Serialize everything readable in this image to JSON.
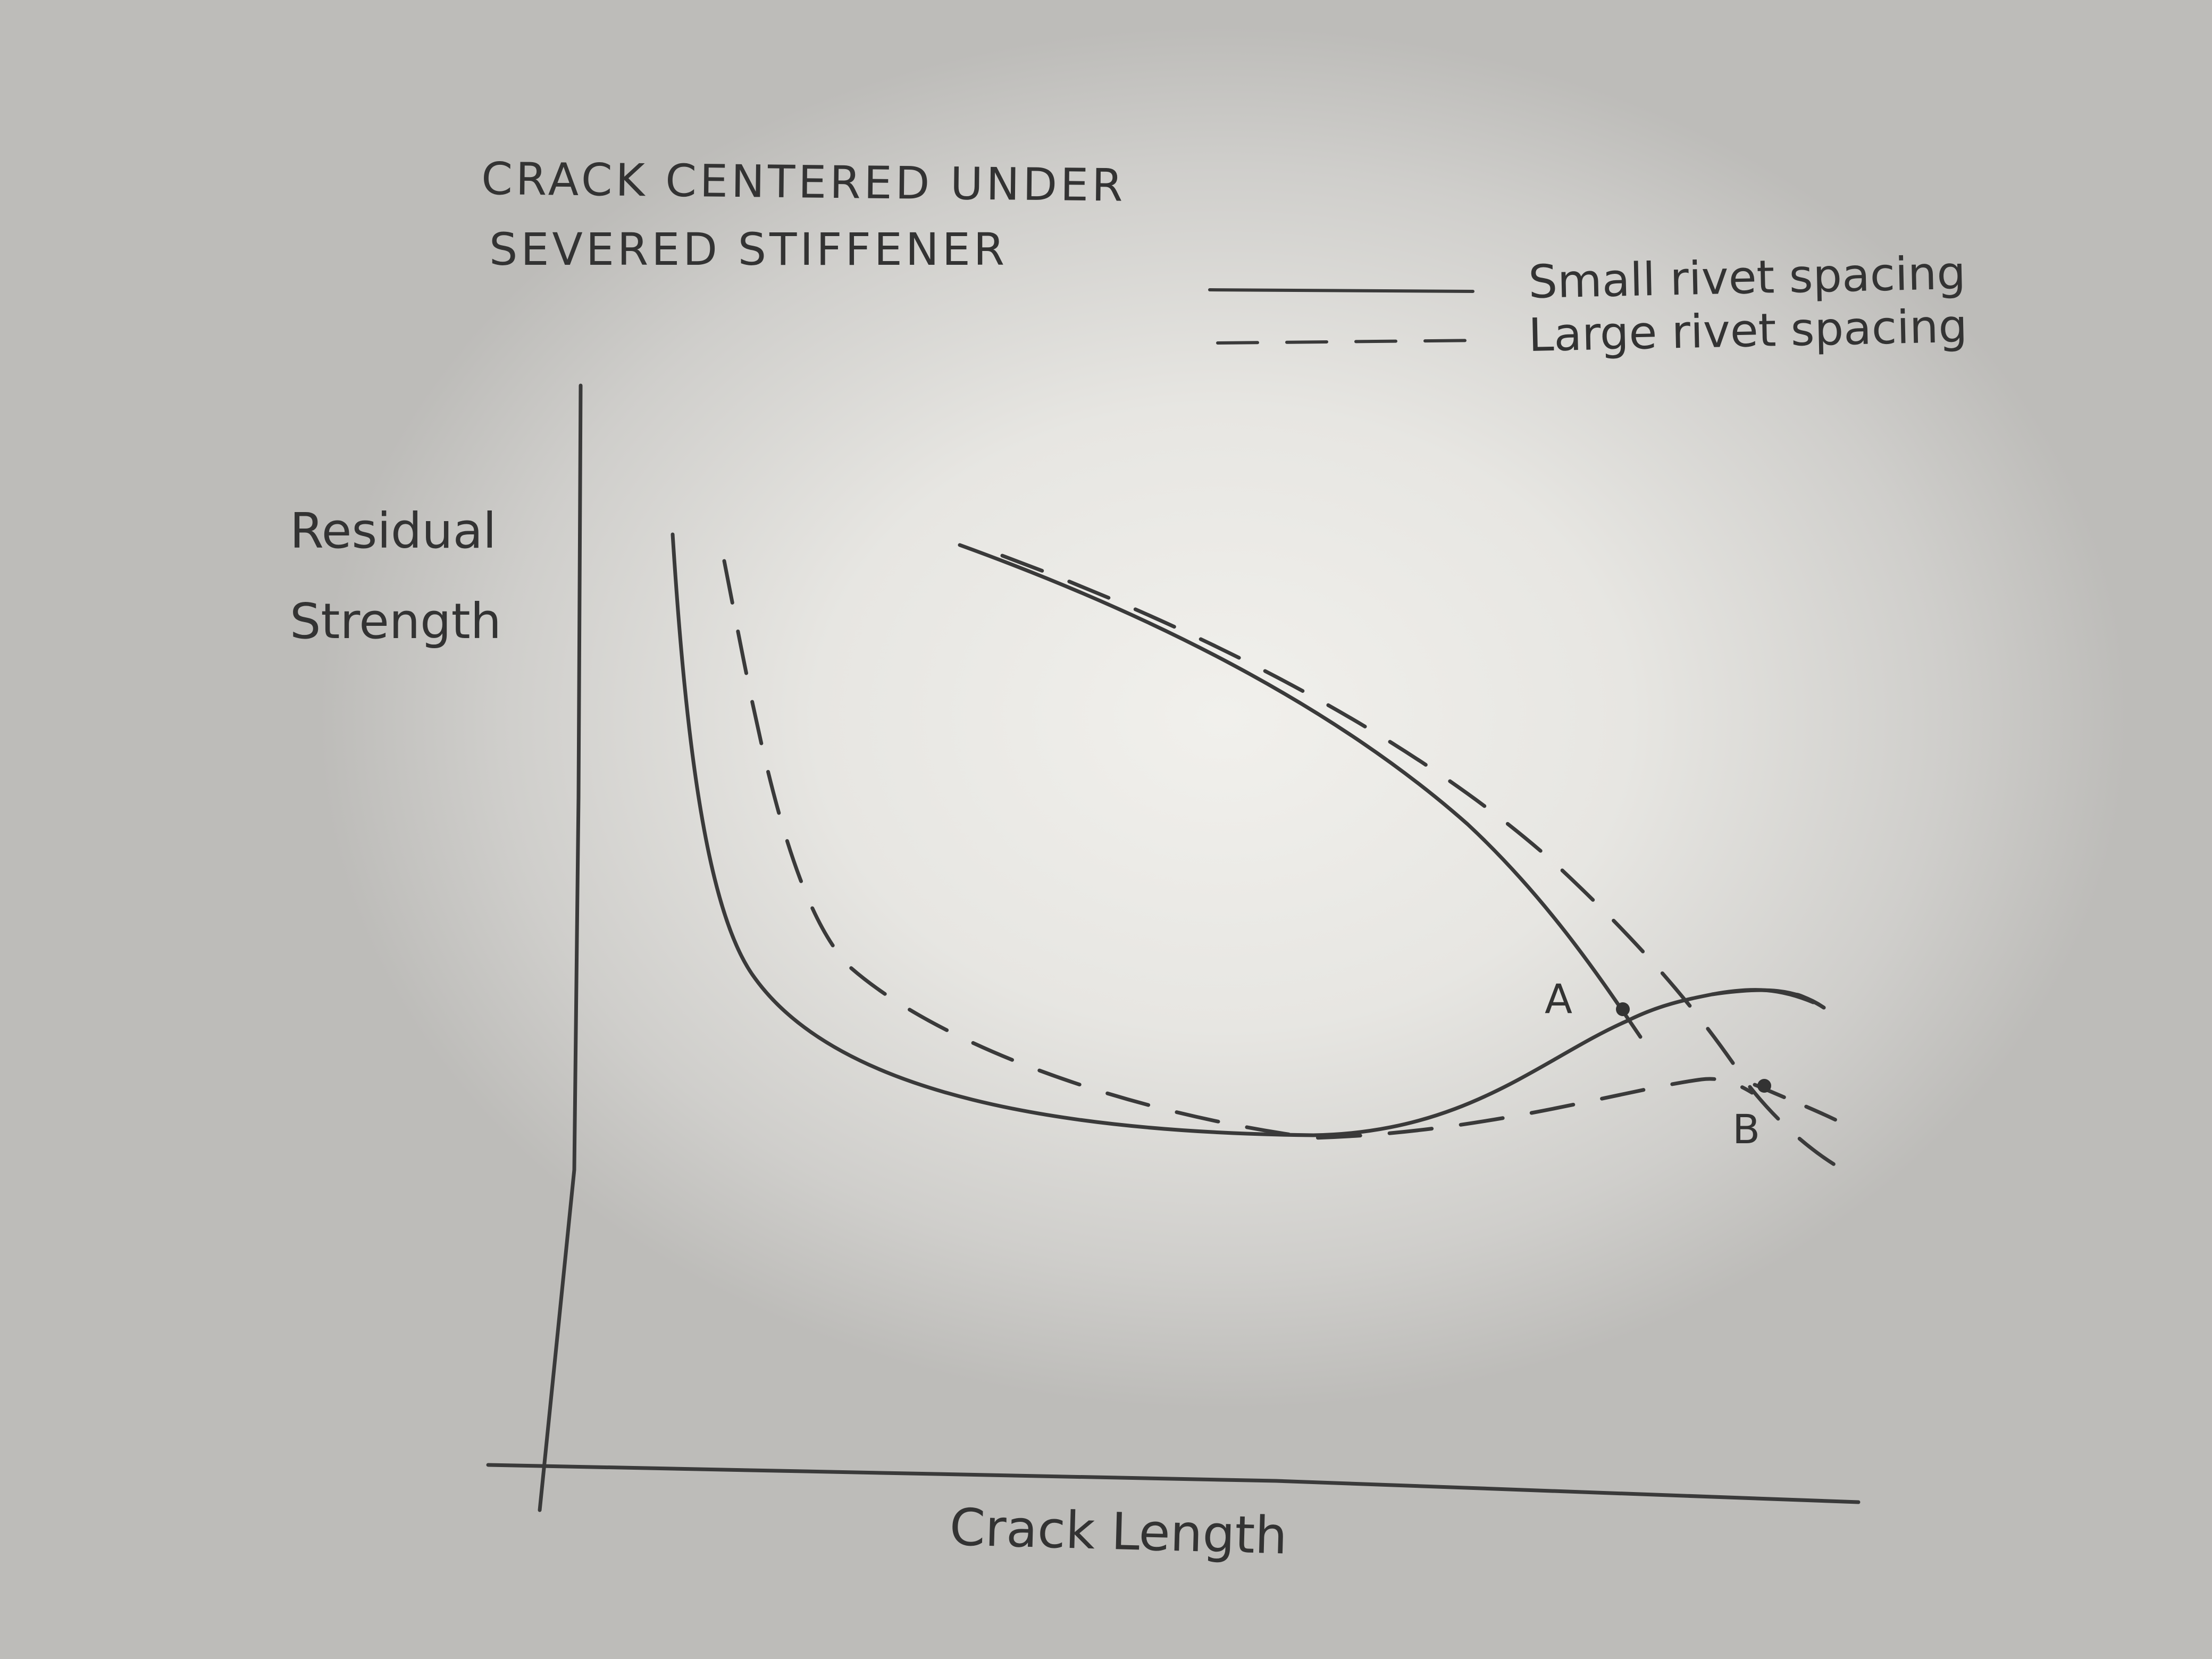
{
  "title": {
    "line1": "CRACK CENTERED UNDER",
    "line2": "SEVERED STIFFENER"
  },
  "legend": {
    "solid_label": "Small rivet spacing",
    "dashed_label": "Large rivet spacing"
  },
  "axes": {
    "y_label_line1": "Residual",
    "y_label_line2": "Strength",
    "x_label": "Crack Length"
  },
  "points": {
    "a": "A",
    "b": "B"
  },
  "colors": {
    "ink": "#3a3a3a",
    "paper": "#e9e8e4"
  }
}
